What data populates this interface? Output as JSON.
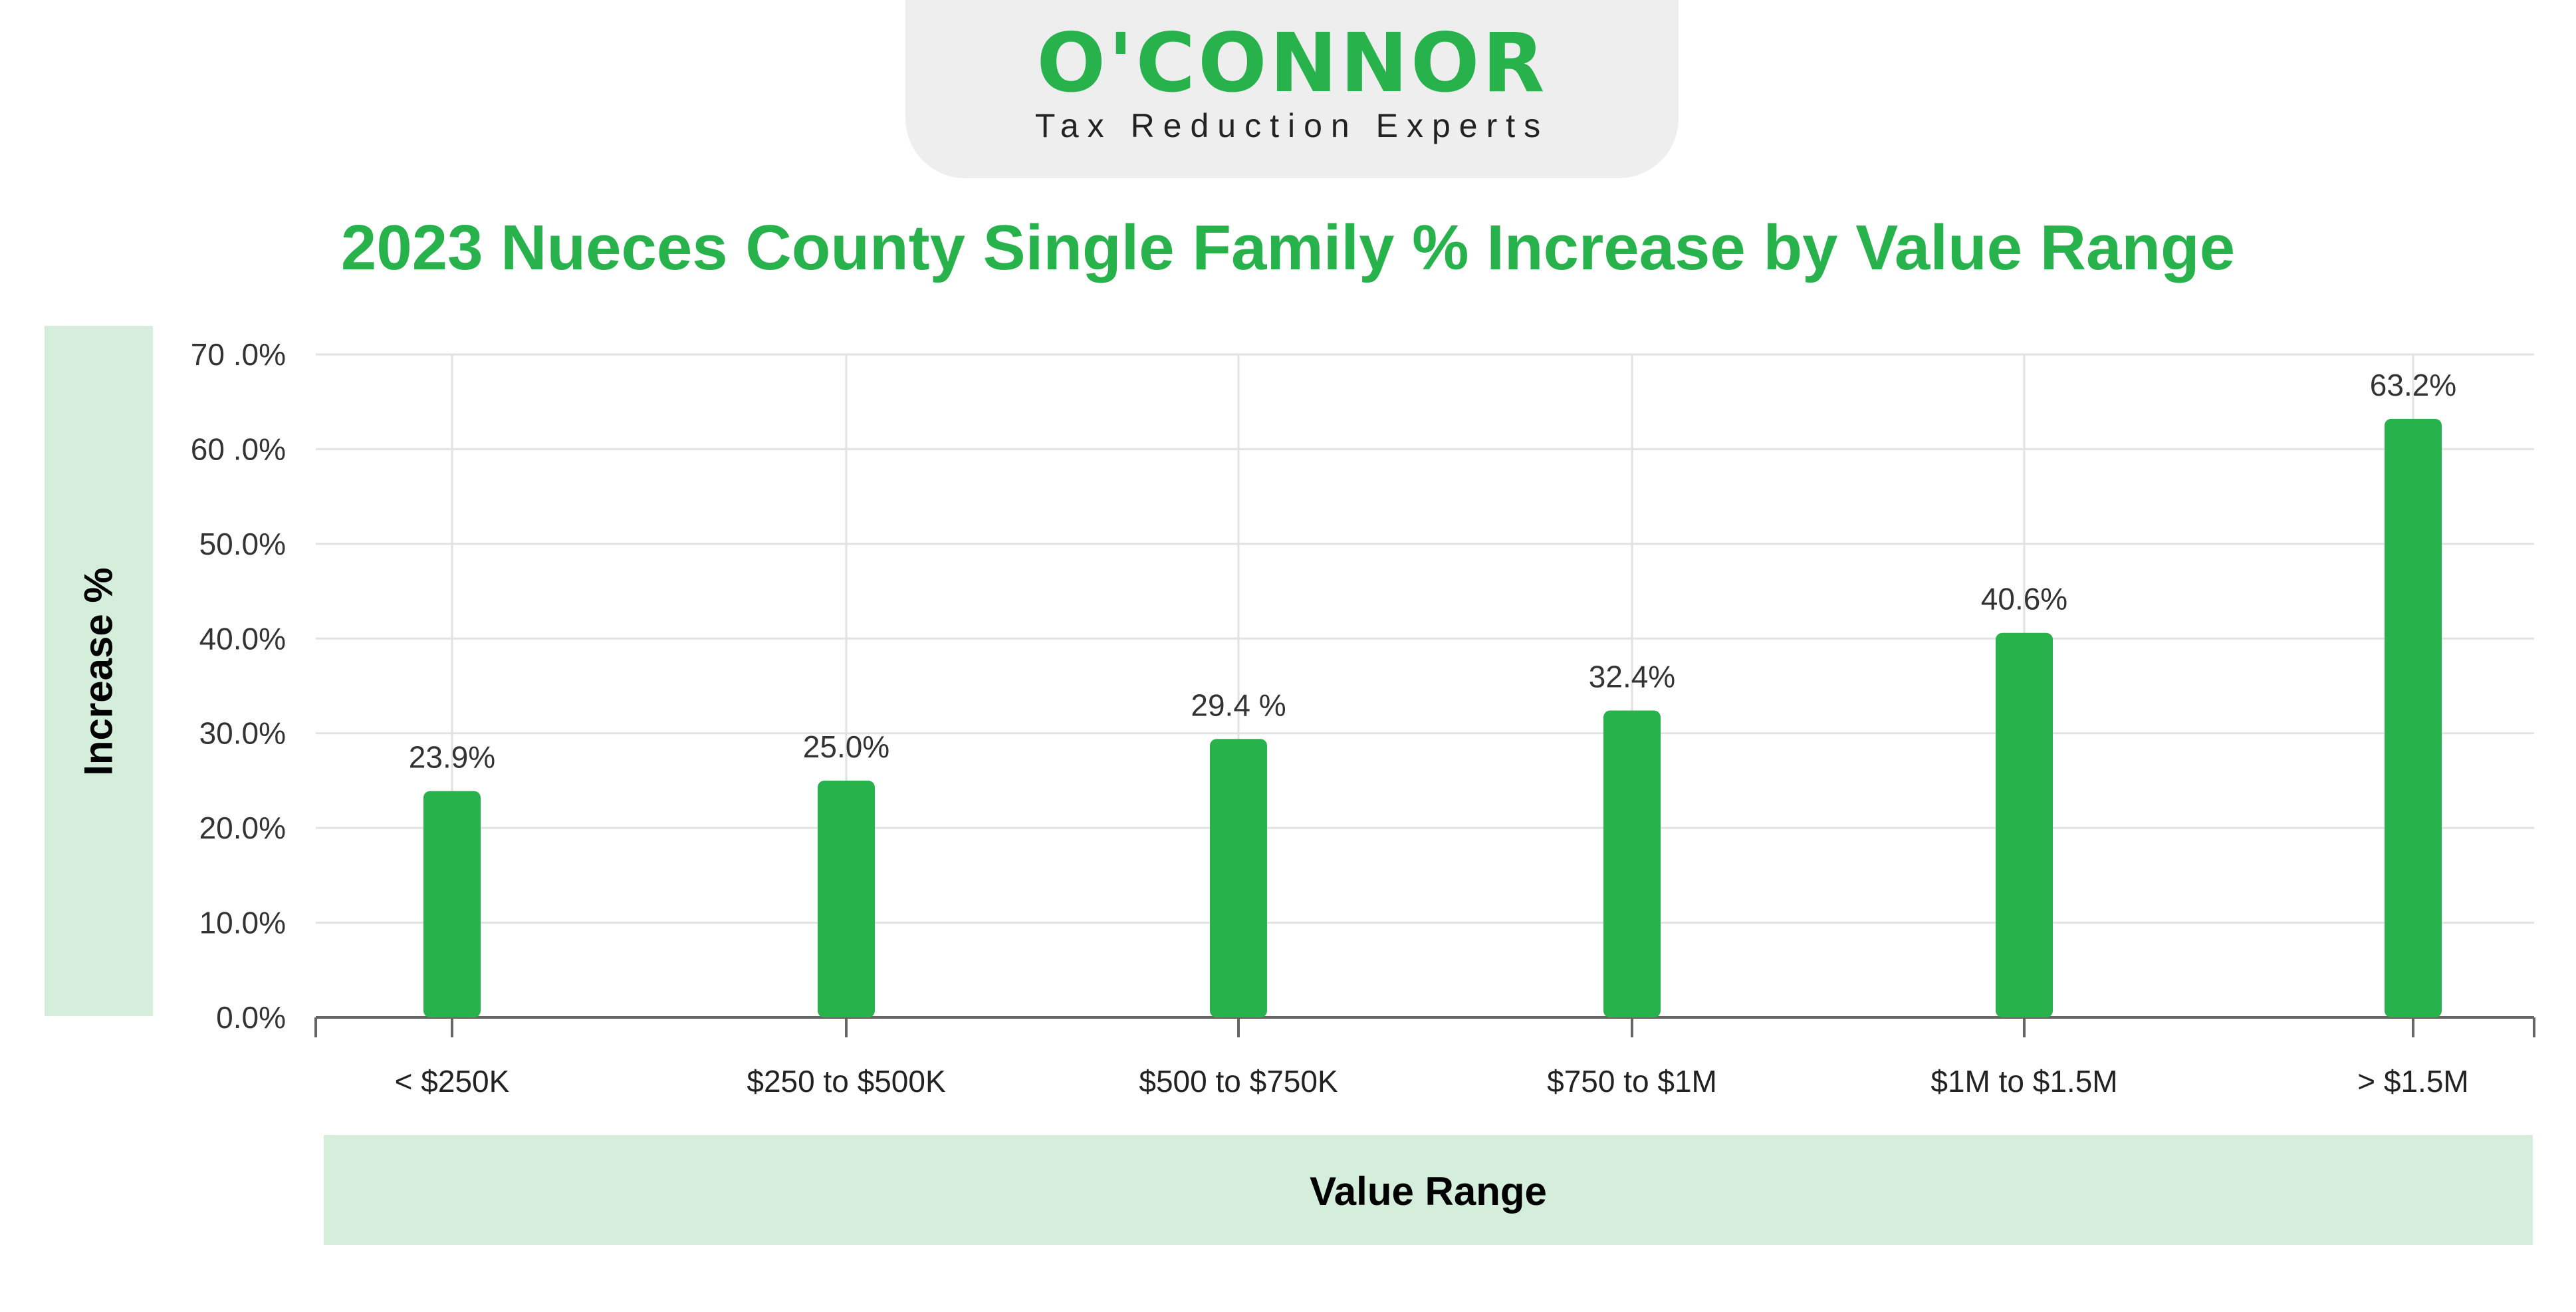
{
  "logo": {
    "wordmark": "O'CONNOR",
    "tagline": "Tax Reduction Experts"
  },
  "chart_data": {
    "type": "bar",
    "title": "2023 Nueces County Single Family % Increase by Value Range",
    "xlabel": "Value Range",
    "ylabel": "Increase %",
    "categories": [
      "< $250K",
      "$250 to $500K",
      "$500 to $750K",
      "$750 to $1M",
      "$1M to $1.5M",
      "> $1.5M"
    ],
    "values": [
      23.9,
      25.0,
      29.4,
      32.4,
      40.6,
      63.2
    ],
    "data_labels": [
      "23.9%",
      "25.0%",
      "29.4 %",
      "32.4%",
      "40.6%",
      "63.2%"
    ],
    "ylim": [
      0,
      70
    ],
    "yticks": [
      0,
      10,
      20,
      30,
      40,
      50,
      60,
      70
    ],
    "ytick_labels": [
      "0.0%",
      "10.0%",
      "20.0%",
      "30.0%",
      "40.0%",
      "50.0%",
      "60 .0%",
      "70 .0%"
    ],
    "grid": true,
    "colors": {
      "bar": "#27b24c",
      "title": "#27b24c",
      "label_background": "#d5eedb"
    }
  }
}
